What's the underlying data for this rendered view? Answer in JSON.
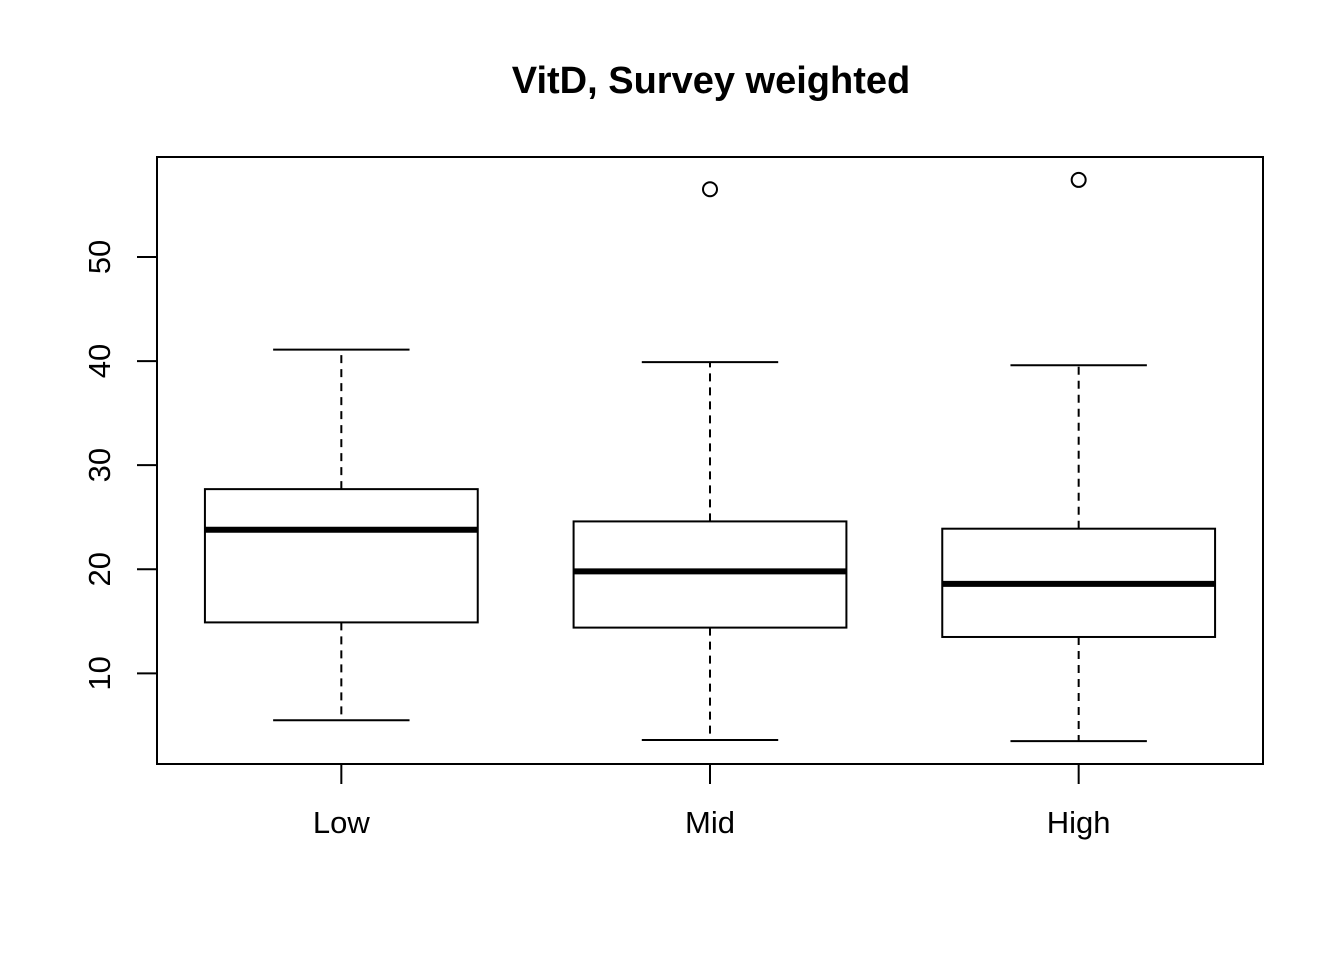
{
  "chart_data": {
    "type": "box",
    "title": "VitD, Survey weighted",
    "xlabel": "",
    "ylabel": "",
    "categories": [
      "Low",
      "Mid",
      "High"
    ],
    "boxes": [
      {
        "category": "Low",
        "whisker_low": 5.5,
        "q1": 14.9,
        "median": 23.8,
        "q3": 27.7,
        "whisker_high": 41.1,
        "outliers": []
      },
      {
        "category": "Mid",
        "whisker_low": 3.6,
        "q1": 14.4,
        "median": 19.8,
        "q3": 24.6,
        "whisker_high": 39.9,
        "outliers": [
          56.5
        ]
      },
      {
        "category": "High",
        "whisker_low": 3.5,
        "q1": 13.5,
        "median": 18.6,
        "q3": 23.9,
        "whisker_high": 39.6,
        "outliers": [
          57.4
        ]
      }
    ],
    "ylim": [
      1.3,
      59.6
    ],
    "yticks": [
      10,
      20,
      30,
      40,
      50
    ],
    "ytick_labels": [
      "10",
      "20",
      "30",
      "40",
      "50"
    ],
    "grid": false,
    "legend": "none",
    "colors": {
      "line": "#000000",
      "box_fill": "#ffffff",
      "background": "#ffffff"
    }
  }
}
